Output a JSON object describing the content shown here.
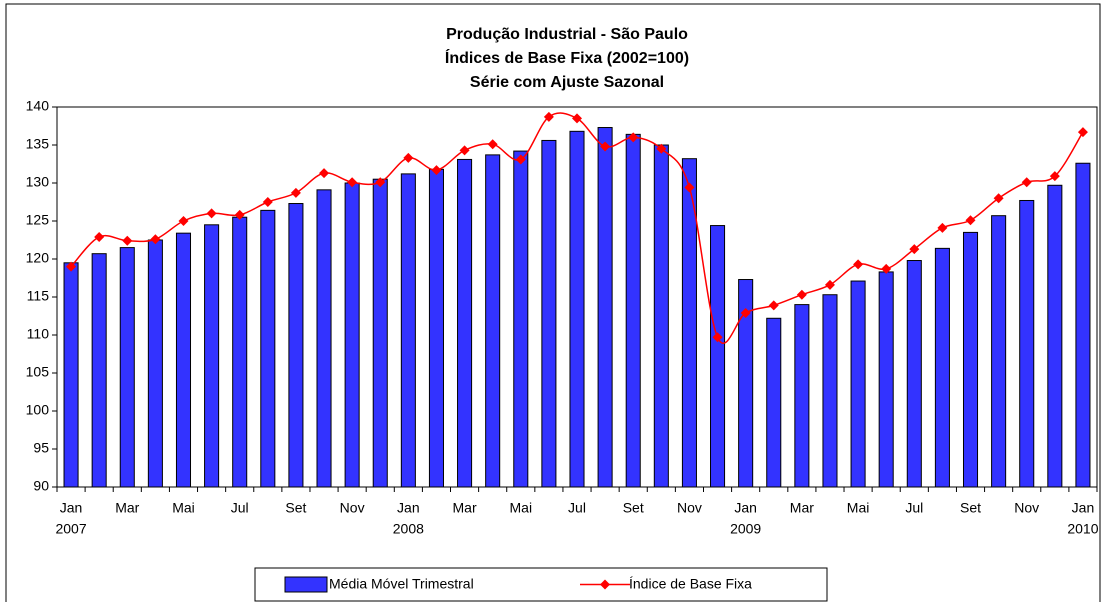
{
  "chart_data": {
    "type": "bar_line",
    "title": [
      "Produção Industrial - São Paulo",
      "Índices de Base Fixa (2002=100)",
      "Série com Ajuste Sazonal"
    ],
    "categories": [
      "Jan",
      null,
      "Mar",
      null,
      "Mai",
      null,
      "Jul",
      null,
      "Set",
      null,
      "Nov",
      null,
      "Jan",
      null,
      "Mar",
      null,
      "Mai",
      null,
      "Jul",
      null,
      "Set",
      null,
      "Nov",
      null,
      "Jan",
      null,
      "Mar",
      null,
      "Mai",
      null,
      "Jul",
      null,
      "Set",
      null,
      "Nov",
      null,
      "Jan"
    ],
    "years": [
      "2007",
      null,
      null,
      null,
      null,
      null,
      null,
      null,
      null,
      null,
      null,
      null,
      "2008",
      null,
      null,
      null,
      null,
      null,
      null,
      null,
      null,
      null,
      null,
      null,
      "2009",
      null,
      null,
      null,
      null,
      null,
      null,
      null,
      null,
      null,
      null,
      null,
      "2010"
    ],
    "series": [
      {
        "name": "Média Móvel Trimestral",
        "type": "bar",
        "color": "#3333ff",
        "values": [
          119.5,
          120.7,
          121.5,
          122.5,
          123.4,
          124.5,
          125.5,
          126.4,
          127.3,
          129.1,
          130.0,
          130.5,
          131.2,
          131.8,
          133.1,
          133.7,
          134.2,
          135.6,
          136.8,
          137.3,
          136.4,
          135.0,
          133.2,
          124.4,
          117.3,
          112.2,
          114.0,
          115.3,
          117.1,
          118.3,
          119.8,
          121.4,
          123.5,
          125.7,
          127.7,
          129.7,
          132.6
        ]
      },
      {
        "name": "Índice de Base Fixa",
        "type": "line",
        "color": "#ff0000",
        "values": [
          119.0,
          122.9,
          122.4,
          122.6,
          125.0,
          126.0,
          125.8,
          127.5,
          128.7,
          131.3,
          130.1,
          130.1,
          133.3,
          131.7,
          134.3,
          135.1,
          133.1,
          138.7,
          138.5,
          134.8,
          136.0,
          134.5,
          129.4,
          109.7,
          112.9,
          113.9,
          115.3,
          116.6,
          119.3,
          118.7,
          121.3,
          124.1,
          125.1,
          128.0,
          130.1,
          130.9,
          136.7
        ]
      }
    ],
    "ylim": [
      90,
      140
    ],
    "yticks": [
      90,
      95,
      100,
      105,
      110,
      115,
      120,
      125,
      130,
      135,
      140
    ],
    "grid": false,
    "legend": "bottom"
  }
}
